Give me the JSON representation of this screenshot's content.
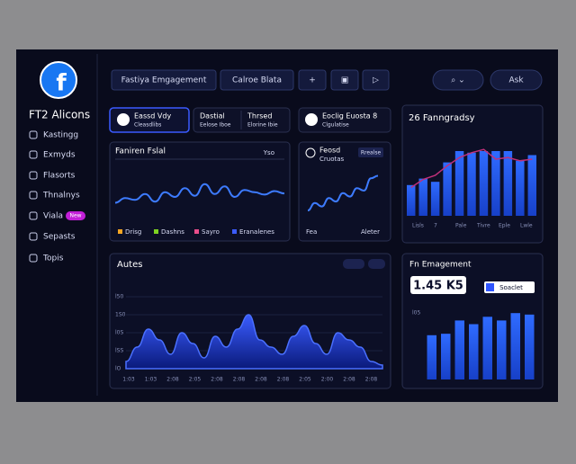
{
  "sidebar": {
    "brand": "FT2 Alicons",
    "nav": [
      "Kastingg",
      "Exmyds",
      "Flasorts",
      "Thnalnys",
      "Viala",
      "Sepasts",
      "Topis"
    ],
    "badge": "New"
  },
  "toolbar": {
    "buttons": [
      "Fastiya Emgagement",
      "Calroe Blata",
      "+",
      "▣",
      "▷"
    ],
    "right": [
      "⌕ ⌄",
      "Ask"
    ]
  },
  "cards": [
    {
      "title": "Eassd Vdy",
      "sub": "Cleasdlibs"
    },
    {
      "title": "Dastial",
      "sub": "Eelose Iboe"
    },
    {
      "title": "Thrsed",
      "sub": "Elorine Ibie"
    },
    {
      "title": "Eoclig Euosta 8",
      "sub": "Clgulatise"
    }
  ],
  "trend": {
    "title": "Faniren Fslal",
    "tag": "Yso",
    "values": [
      30,
      38,
      35,
      45,
      32,
      48,
      40,
      55,
      42,
      62,
      45,
      58,
      40,
      52,
      48,
      44,
      50,
      46
    ],
    "ylim": [
      0,
      100
    ],
    "legend": [
      {
        "name": "Drisg",
        "color": "#f5a623"
      },
      {
        "name": "Dashns",
        "color": "#7ed321"
      },
      {
        "name": "Sayro",
        "color": "#e94d8a"
      },
      {
        "name": "Eranalenes",
        "color": "#3b5bfd"
      }
    ]
  },
  "growth": {
    "title": "Feosd",
    "sub": "Cruotas",
    "button": "Rrealse",
    "values": [
      20,
      35,
      28,
      45,
      38,
      55,
      48,
      65,
      60,
      85,
      90
    ],
    "ylim": [
      0,
      100
    ],
    "legend": "Fea",
    "note": "Aleter"
  },
  "ranking": {
    "title": "26 Fanngradsy",
    "bars": [
      38,
      46,
      42,
      66,
      80,
      78,
      80,
      80,
      80,
      68,
      75
    ],
    "line": [
      35,
      45,
      50,
      62,
      72,
      78,
      82,
      70,
      72,
      68,
      70
    ],
    "ylim": [
      0,
      100
    ],
    "xlabels": [
      "Lisls",
      "7",
      "Pale",
      "Tivre",
      "Eple",
      "Lwle"
    ]
  },
  "audience": {
    "title": "Autes",
    "values": [
      10,
      30,
      55,
      40,
      20,
      50,
      35,
      15,
      45,
      30,
      55,
      75,
      40,
      30,
      20,
      45,
      60,
      35,
      20,
      50,
      40,
      30,
      10,
      5
    ],
    "ylim": [
      0,
      100
    ],
    "yticks": [
      {
        "value": 0,
        "label": "lO"
      },
      {
        "value": 25,
        "label": "lSS"
      },
      {
        "value": 50,
        "label": "l0S"
      },
      {
        "value": 75,
        "label": "1S0"
      },
      {
        "value": 100,
        "label": "l50"
      }
    ],
    "xlabels": [
      "1:03",
      "1:03",
      "2:08",
      "2:05",
      "2:08",
      "2:08",
      "2:08",
      "2:08",
      "2:05",
      "2:00",
      "2:08",
      "2:08"
    ]
  },
  "engagement": {
    "title": "Fn Emagement",
    "value": "1.45 K5",
    "button": "Soaclet",
    "bars": [
      60,
      62,
      80,
      75,
      85,
      80,
      90,
      88
    ],
    "ylim": [
      0,
      100
    ],
    "ylabel": "l05"
  }
}
